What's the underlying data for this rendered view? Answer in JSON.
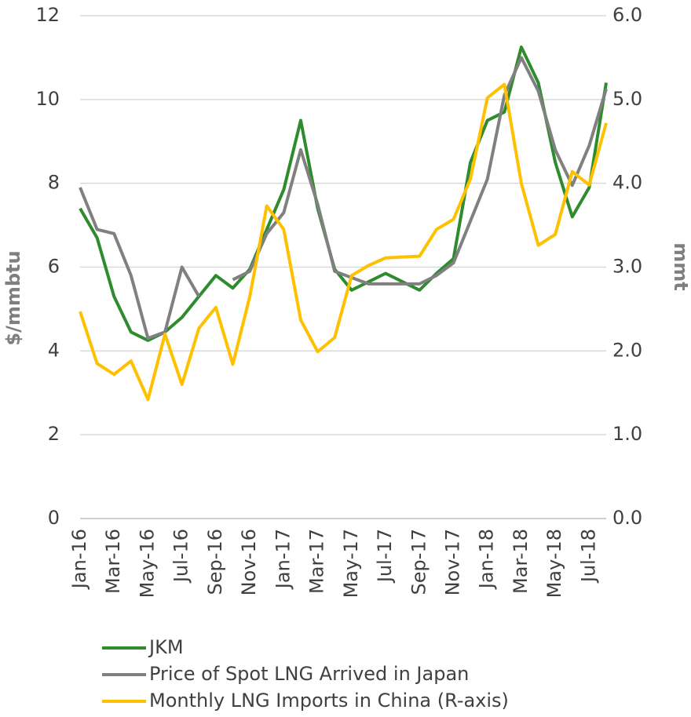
{
  "chart_data": {
    "type": "line",
    "categories": [
      "Jan-16",
      null,
      "Mar-16",
      null,
      "May-16",
      null,
      "Jul-16",
      null,
      "Sep-16",
      null,
      "Nov-16",
      null,
      "Jan-17",
      null,
      "Mar-17",
      null,
      "May-17",
      null,
      "Jul-17",
      null,
      "Sep-17",
      null,
      "Nov-17",
      null,
      "Jan-18",
      null,
      "Mar-18",
      null,
      "May-18",
      null,
      "Jul-18",
      null
    ],
    "series": [
      {
        "name": "JKM",
        "color": "#2e8b2e",
        "values": [
          7.4,
          6.7,
          5.3,
          4.45,
          4.25,
          4.45,
          4.8,
          5.3,
          5.8,
          5.5,
          5.95,
          6.9,
          7.85,
          9.5,
          7.4,
          5.95,
          5.45,
          5.65,
          5.85,
          5.65,
          5.45,
          5.85,
          6.2,
          8.5,
          9.5,
          9.7,
          11.25,
          10.4,
          8.5,
          7.2,
          7.9,
          10.4
        ]
      },
      {
        "name": "Price of Spot LNG Arrived in Japan",
        "color": "#808080",
        "values": [
          7.9,
          6.9,
          6.8,
          5.8,
          4.3,
          4.45,
          6.0,
          5.3,
          null,
          5.7,
          5.9,
          6.8,
          7.3,
          8.8,
          7.5,
          5.9,
          5.75,
          5.6,
          5.6,
          5.6,
          5.6,
          5.8,
          6.1,
          7.1,
          8.1,
          10.1,
          11.0,
          10.2,
          8.8,
          7.95,
          8.9,
          10.25
        ]
      },
      {
        "name": "Monthly LNG Imports in China (R-axis)",
        "color": "#ffc000",
        "axis": "y2",
        "values": [
          2.47,
          1.85,
          1.72,
          1.88,
          1.42,
          2.2,
          1.6,
          2.27,
          2.52,
          1.84,
          2.65,
          3.73,
          3.45,
          2.37,
          1.99,
          2.16,
          2.9,
          3.02,
          3.11,
          3.12,
          3.13,
          3.45,
          3.57,
          4.05,
          5.02,
          5.18,
          4.0,
          3.26,
          3.39,
          4.14,
          3.98,
          4.72
        ]
      }
    ],
    "ylabel": "$/mmbtu",
    "y2label": "mmt",
    "ylim": [
      0,
      12
    ],
    "yticks": [
      0,
      2,
      4,
      6,
      8,
      10,
      12
    ],
    "y2lim": [
      0,
      6
    ],
    "y2ticks": [
      {
        "value": 0,
        "label": "0.0"
      },
      {
        "value": 1,
        "label": "1.0"
      },
      {
        "value": 2,
        "label": "2.0"
      },
      {
        "value": 3,
        "label": "3.0"
      },
      {
        "value": 4,
        "label": "4.0"
      },
      {
        "value": 5,
        "label": "5.0"
      },
      {
        "value": 6,
        "label": "6.0"
      }
    ],
    "grid": true,
    "legend": "bottom"
  }
}
